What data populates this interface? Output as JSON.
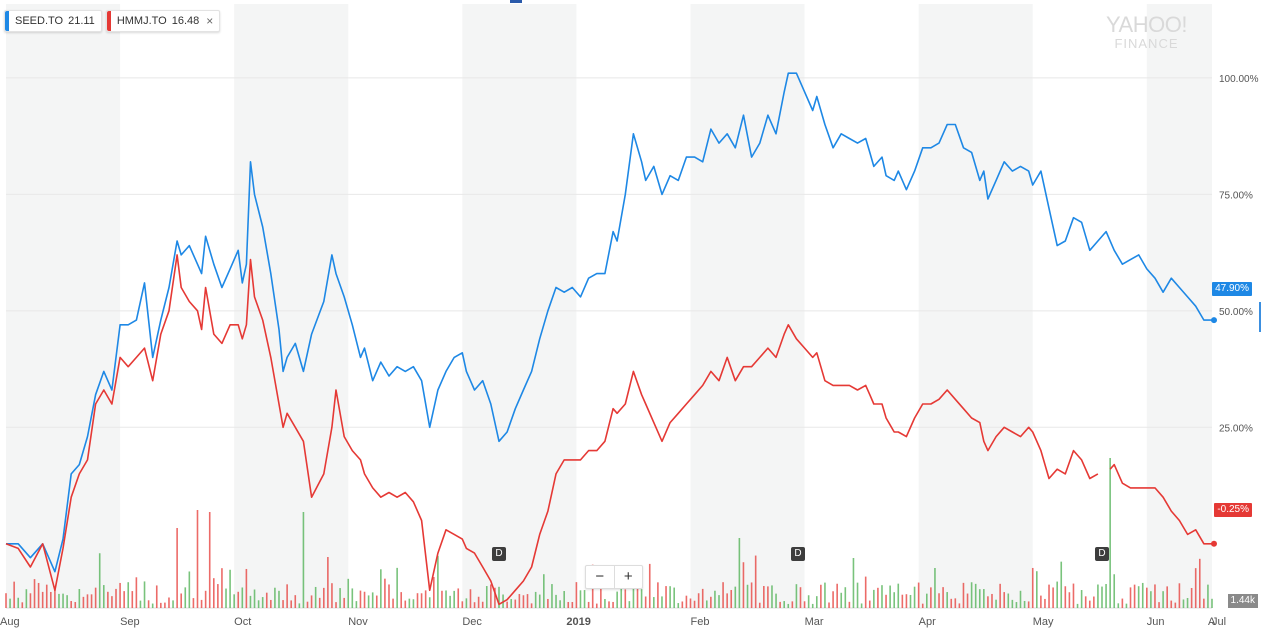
{
  "legend": [
    {
      "symbol": "SEED.TO",
      "value": "21.11",
      "color": "#1e88e5"
    },
    {
      "symbol": "HMMJ.TO",
      "value": "16.48",
      "color": "#e53935",
      "close": "×"
    }
  ],
  "logo": {
    "line1": "YAHOO!",
    "line2": "FINANCE"
  },
  "zoom": {
    "minus": "−",
    "plus": "+"
  },
  "dividend_marker": "D",
  "last_values": {
    "seed": "47.90%",
    "hmmj": "-0.25%"
  },
  "volume_label": "1.44k",
  "colors": {
    "seed": "#1e88e5",
    "hmmj": "#e53935",
    "up": "#4caf50",
    "down": "#e53935",
    "band": "#f4f5f5"
  },
  "chart_data": {
    "type": "line",
    "ylim": [
      -11,
      112
    ],
    "y_ticks": [
      "25.00%",
      "50.00%",
      "75.00%",
      "100.00%"
    ],
    "y_tick_values": [
      25,
      50,
      75,
      100
    ],
    "x_labels": [
      "Aug",
      "Sep",
      "Oct",
      "Nov",
      "Dec",
      "2019",
      "Feb",
      "Mar",
      "Apr",
      "May",
      "Jun",
      "Jul",
      "A"
    ],
    "series": [
      {
        "name": "SEED.TO",
        "color": "#1e88e5",
        "points": [
          [
            0,
            0
          ],
          [
            3,
            0
          ],
          [
            6,
            -3
          ],
          [
            9,
            0
          ],
          [
            12,
            -6
          ],
          [
            14,
            1
          ],
          [
            16,
            15
          ],
          [
            18,
            17
          ],
          [
            20,
            23
          ],
          [
            22,
            32
          ],
          [
            24,
            37
          ],
          [
            26,
            33
          ],
          [
            28,
            47
          ],
          [
            30,
            47
          ],
          [
            32,
            48
          ],
          [
            34,
            56
          ],
          [
            36,
            40
          ],
          [
            38,
            48
          ],
          [
            40,
            55
          ],
          [
            42,
            65
          ],
          [
            43,
            62
          ],
          [
            45,
            64
          ],
          [
            47,
            60
          ],
          [
            48,
            58
          ],
          [
            49,
            66
          ],
          [
            51,
            60
          ],
          [
            53,
            55
          ],
          [
            55,
            59
          ],
          [
            57,
            63
          ],
          [
            58,
            56
          ],
          [
            59,
            60
          ],
          [
            60,
            82
          ],
          [
            61,
            75
          ],
          [
            63,
            68
          ],
          [
            65,
            58
          ],
          [
            67,
            46
          ],
          [
            68,
            37
          ],
          [
            69,
            40
          ],
          [
            71,
            43
          ],
          [
            73,
            37
          ],
          [
            75,
            45
          ],
          [
            78,
            52
          ],
          [
            80,
            62
          ],
          [
            81,
            58
          ],
          [
            83,
            53
          ],
          [
            85,
            47
          ],
          [
            87,
            40
          ],
          [
            88,
            42
          ],
          [
            90,
            35
          ],
          [
            92,
            39
          ],
          [
            94,
            36
          ],
          [
            96,
            38
          ],
          [
            98,
            37
          ],
          [
            100,
            38
          ],
          [
            102,
            35
          ],
          [
            104,
            25
          ],
          [
            106,
            33
          ],
          [
            108,
            37
          ],
          [
            110,
            40
          ],
          [
            112,
            41
          ],
          [
            113,
            37
          ],
          [
            115,
            33
          ],
          [
            117,
            35
          ],
          [
            119,
            30
          ],
          [
            121,
            22
          ],
          [
            123,
            24
          ],
          [
            125,
            29
          ],
          [
            127,
            33
          ],
          [
            129,
            37
          ],
          [
            131,
            44
          ],
          [
            133,
            50
          ],
          [
            135,
            55
          ],
          [
            137,
            54
          ],
          [
            139,
            55
          ],
          [
            141,
            53
          ],
          [
            143,
            57
          ],
          [
            145,
            58
          ],
          [
            147,
            58
          ],
          [
            149,
            67
          ],
          [
            150,
            65
          ],
          [
            152,
            75
          ],
          [
            154,
            88
          ],
          [
            156,
            82
          ],
          [
            157,
            78
          ],
          [
            159,
            81
          ],
          [
            161,
            75
          ],
          [
            163,
            79
          ],
          [
            165,
            78
          ],
          [
            167,
            83
          ],
          [
            169,
            83
          ],
          [
            171,
            82
          ],
          [
            173,
            89
          ],
          [
            175,
            86
          ],
          [
            177,
            88
          ],
          [
            179,
            85
          ],
          [
            181,
            92
          ],
          [
            183,
            83
          ],
          [
            185,
            86
          ],
          [
            187,
            92
          ],
          [
            189,
            88
          ],
          [
            191,
            97
          ],
          [
            192,
            101
          ],
          [
            194,
            101
          ],
          [
            196,
            97
          ],
          [
            198,
            93
          ],
          [
            199,
            96
          ],
          [
            201,
            90
          ],
          [
            203,
            85
          ],
          [
            205,
            88
          ],
          [
            207,
            87
          ],
          [
            209,
            86
          ],
          [
            211,
            87
          ],
          [
            212,
            84
          ],
          [
            213,
            81
          ],
          [
            215,
            83
          ],
          [
            216,
            79
          ],
          [
            218,
            78
          ],
          [
            219,
            80
          ],
          [
            221,
            76
          ],
          [
            223,
            80
          ],
          [
            225,
            85
          ],
          [
            227,
            85
          ],
          [
            229,
            86
          ],
          [
            231,
            90
          ],
          [
            233,
            90
          ],
          [
            235,
            85
          ],
          [
            237,
            84
          ],
          [
            239,
            78
          ],
          [
            240,
            80
          ],
          [
            241,
            74
          ],
          [
            243,
            78
          ],
          [
            245,
            82
          ],
          [
            247,
            80
          ],
          [
            249,
            81
          ],
          [
            251,
            80
          ],
          [
            252,
            77
          ],
          [
            254,
            80
          ],
          [
            256,
            72
          ],
          [
            258,
            64
          ],
          [
            260,
            65
          ],
          [
            262,
            70
          ],
          [
            264,
            69
          ],
          [
            266,
            63
          ],
          [
            268,
            65
          ],
          [
            270,
            67
          ],
          [
            272,
            63
          ],
          [
            274,
            60
          ],
          [
            276,
            61
          ],
          [
            278,
            62
          ],
          [
            280,
            59
          ],
          [
            282,
            57
          ],
          [
            284,
            54
          ],
          [
            286,
            57
          ],
          [
            288,
            55
          ],
          [
            290,
            53
          ],
          [
            292,
            51
          ],
          [
            294,
            48
          ],
          [
            296,
            48
          ]
        ]
      },
      {
        "name": "HMMJ.TO",
        "color": "#e53935",
        "points": [
          [
            0,
            0
          ],
          [
            3,
            -1
          ],
          [
            6,
            -5
          ],
          [
            9,
            0
          ],
          [
            12,
            -10
          ],
          [
            14,
            -1
          ],
          [
            16,
            10
          ],
          [
            18,
            15
          ],
          [
            20,
            18
          ],
          [
            22,
            30
          ],
          [
            24,
            33
          ],
          [
            26,
            30
          ],
          [
            28,
            40
          ],
          [
            30,
            38
          ],
          [
            32,
            40
          ],
          [
            34,
            42
          ],
          [
            36,
            35
          ],
          [
            38,
            45
          ],
          [
            40,
            50
          ],
          [
            42,
            62
          ],
          [
            43,
            55
          ],
          [
            45,
            52
          ],
          [
            47,
            50
          ],
          [
            48,
            46
          ],
          [
            49,
            55
          ],
          [
            51,
            45
          ],
          [
            53,
            43
          ],
          [
            55,
            47
          ],
          [
            57,
            47
          ],
          [
            58,
            44
          ],
          [
            59,
            47
          ],
          [
            60,
            61
          ],
          [
            61,
            53
          ],
          [
            63,
            48
          ],
          [
            65,
            40
          ],
          [
            67,
            30
          ],
          [
            68,
            25
          ],
          [
            69,
            28
          ],
          [
            71,
            25
          ],
          [
            73,
            22
          ],
          [
            75,
            10
          ],
          [
            78,
            15
          ],
          [
            80,
            25
          ],
          [
            81,
            33
          ],
          [
            83,
            23
          ],
          [
            85,
            20
          ],
          [
            87,
            18
          ],
          [
            88,
            15
          ],
          [
            90,
            12
          ],
          [
            92,
            10
          ],
          [
            94,
            11
          ],
          [
            96,
            10
          ],
          [
            98,
            11
          ],
          [
            100,
            9
          ],
          [
            102,
            5
          ],
          [
            104,
            -10
          ],
          [
            106,
            -2
          ],
          [
            108,
            3
          ],
          [
            110,
            2
          ],
          [
            112,
            1
          ],
          [
            113,
            -1
          ],
          [
            115,
            -2
          ],
          [
            117,
            -5
          ],
          [
            119,
            -8
          ],
          [
            121,
            -13
          ],
          [
            123,
            -12
          ],
          [
            125,
            -10
          ],
          [
            127,
            -8
          ],
          [
            129,
            -5
          ],
          [
            131,
            2
          ],
          [
            133,
            7
          ],
          [
            135,
            15
          ],
          [
            137,
            18
          ],
          [
            139,
            18
          ],
          [
            141,
            18
          ],
          [
            143,
            20
          ],
          [
            145,
            20
          ],
          [
            147,
            22
          ],
          [
            149,
            29
          ],
          [
            150,
            28
          ],
          [
            152,
            30
          ],
          [
            154,
            37
          ],
          [
            156,
            32
          ],
          [
            157,
            30
          ],
          [
            159,
            26
          ],
          [
            161,
            22
          ],
          [
            163,
            26
          ],
          [
            165,
            28
          ],
          [
            167,
            30
          ],
          [
            169,
            32
          ],
          [
            171,
            34
          ],
          [
            173,
            37
          ],
          [
            175,
            35
          ],
          [
            177,
            40
          ],
          [
            179,
            35
          ],
          [
            181,
            38
          ],
          [
            183,
            38
          ],
          [
            185,
            40
          ],
          [
            187,
            42
          ],
          [
            189,
            40
          ],
          [
            191,
            45
          ],
          [
            192,
            47
          ],
          [
            194,
            44
          ],
          [
            196,
            42
          ],
          [
            198,
            40
          ],
          [
            199,
            41
          ],
          [
            201,
            35
          ],
          [
            203,
            34
          ],
          [
            205,
            34
          ],
          [
            207,
            34
          ],
          [
            209,
            33
          ],
          [
            211,
            34
          ],
          [
            212,
            32
          ],
          [
            213,
            30
          ],
          [
            215,
            30
          ],
          [
            216,
            27
          ],
          [
            218,
            24
          ],
          [
            219,
            24
          ],
          [
            221,
            23
          ],
          [
            223,
            27
          ],
          [
            225,
            30
          ],
          [
            227,
            30
          ],
          [
            229,
            31
          ],
          [
            231,
            33
          ],
          [
            233,
            31
          ],
          [
            235,
            29
          ],
          [
            237,
            27
          ],
          [
            239,
            26
          ],
          [
            240,
            22
          ],
          [
            241,
            20
          ],
          [
            243,
            23
          ],
          [
            245,
            25
          ],
          [
            247,
            24
          ],
          [
            249,
            23
          ],
          [
            251,
            25
          ],
          [
            252,
            24
          ],
          [
            254,
            20
          ],
          [
            256,
            14
          ],
          [
            258,
            16
          ],
          [
            260,
            15
          ],
          [
            262,
            20
          ],
          [
            264,
            18
          ],
          [
            266,
            14
          ],
          [
            268,
            15
          ],
          [
            270,
            null
          ],
          [
            271,
            16
          ],
          [
            272,
            17
          ],
          [
            274,
            13
          ],
          [
            276,
            12
          ],
          [
            278,
            12
          ],
          [
            280,
            12
          ],
          [
            282,
            12
          ],
          [
            284,
            10
          ],
          [
            286,
            7
          ],
          [
            288,
            5
          ],
          [
            290,
            2
          ],
          [
            292,
            3
          ],
          [
            294,
            0
          ],
          [
            296,
            0
          ]
        ]
      }
    ]
  }
}
